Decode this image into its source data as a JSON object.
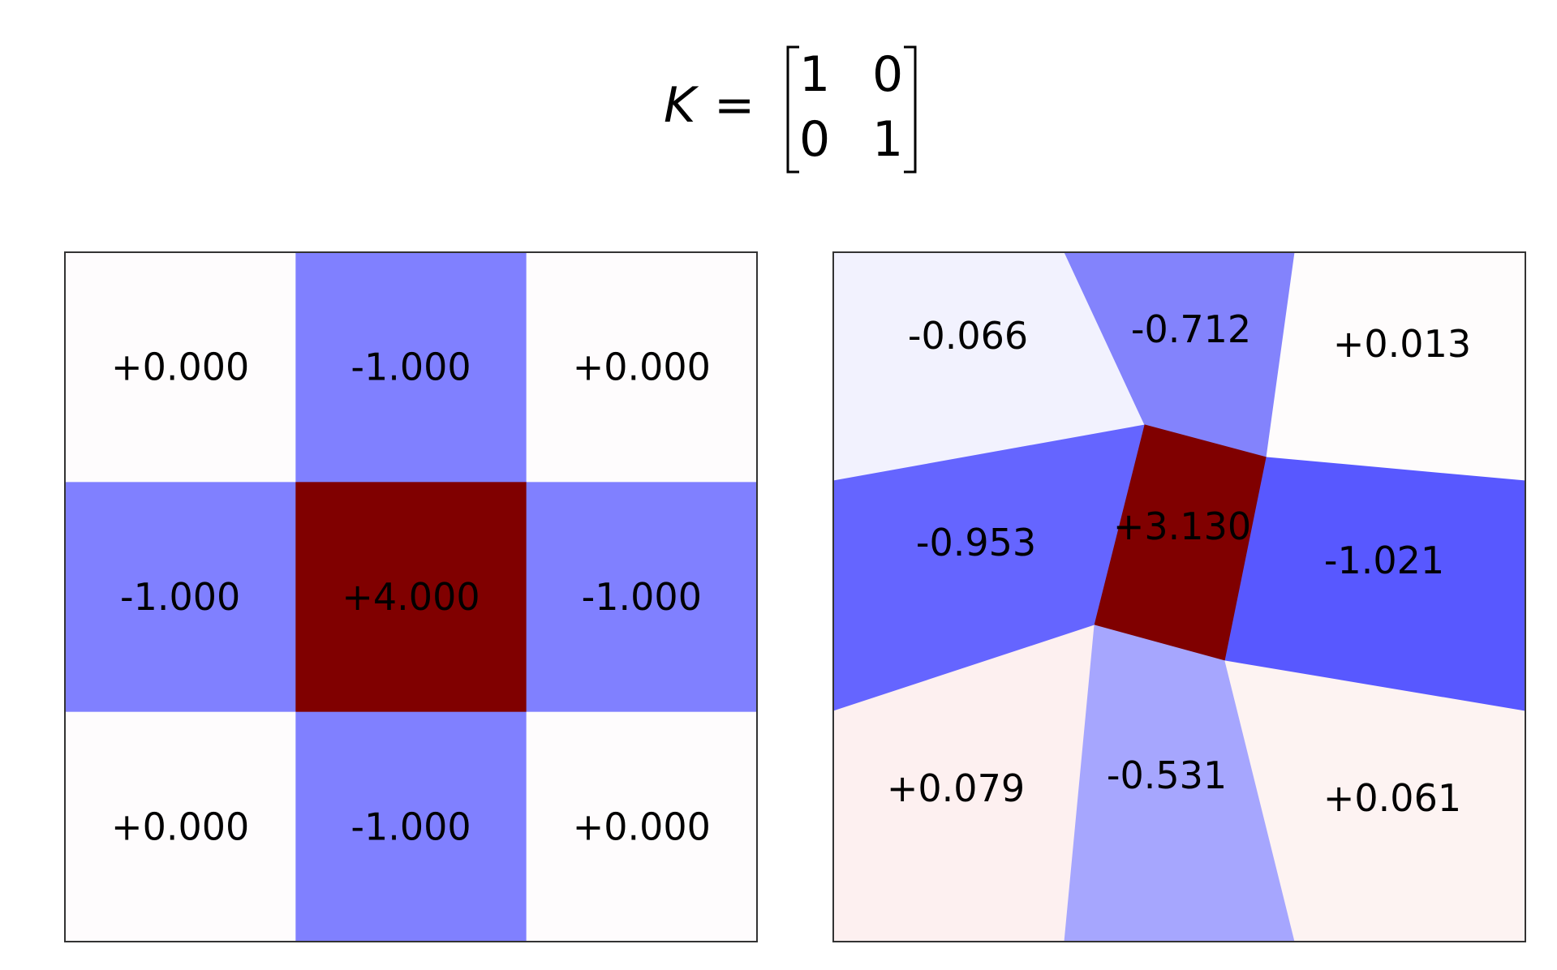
{
  "equation": {
    "lhs": "K",
    "equals": "=",
    "matrix": [
      [
        "1",
        "0"
      ],
      [
        "0",
        "1"
      ]
    ]
  },
  "colors": {
    "strong_positive": "#800000",
    "neutral": "#fefcfd",
    "negative_unit": "#8080ff"
  },
  "left_grid": {
    "rows": [
      [
        {
          "label": "+0.000",
          "color": "#fefcfd"
        },
        {
          "label": "-1.000",
          "color": "#8080ff"
        },
        {
          "label": "+0.000",
          "color": "#fefcfd"
        }
      ],
      [
        {
          "label": "-1.000",
          "color": "#8080ff"
        },
        {
          "label": "+4.000",
          "color": "#800000"
        },
        {
          "label": "-1.000",
          "color": "#8080ff"
        }
      ],
      [
        {
          "label": "+0.000",
          "color": "#fefcfd"
        },
        {
          "label": "-1.000",
          "color": "#8080ff"
        },
        {
          "label": "+0.000",
          "color": "#fefcfd"
        }
      ]
    ]
  },
  "right_grid": {
    "rows": [
      [
        {
          "label": "-0.066",
          "color": "#f2f2fe"
        },
        {
          "label": "-0.712",
          "color": "#8383fc"
        },
        {
          "label": "+0.013",
          "color": "#fefcfc"
        }
      ],
      [
        {
          "label": "-0.953",
          "color": "#6565ff"
        },
        {
          "label": "+3.130",
          "color": "#800000"
        },
        {
          "label": "-1.021",
          "color": "#5858ff"
        }
      ],
      [
        {
          "label": "+0.079",
          "color": "#fdf0f0"
        },
        {
          "label": "-0.531",
          "color": "#a6a6fe"
        },
        {
          "label": "+0.061",
          "color": "#fdf3f2"
        }
      ]
    ]
  }
}
